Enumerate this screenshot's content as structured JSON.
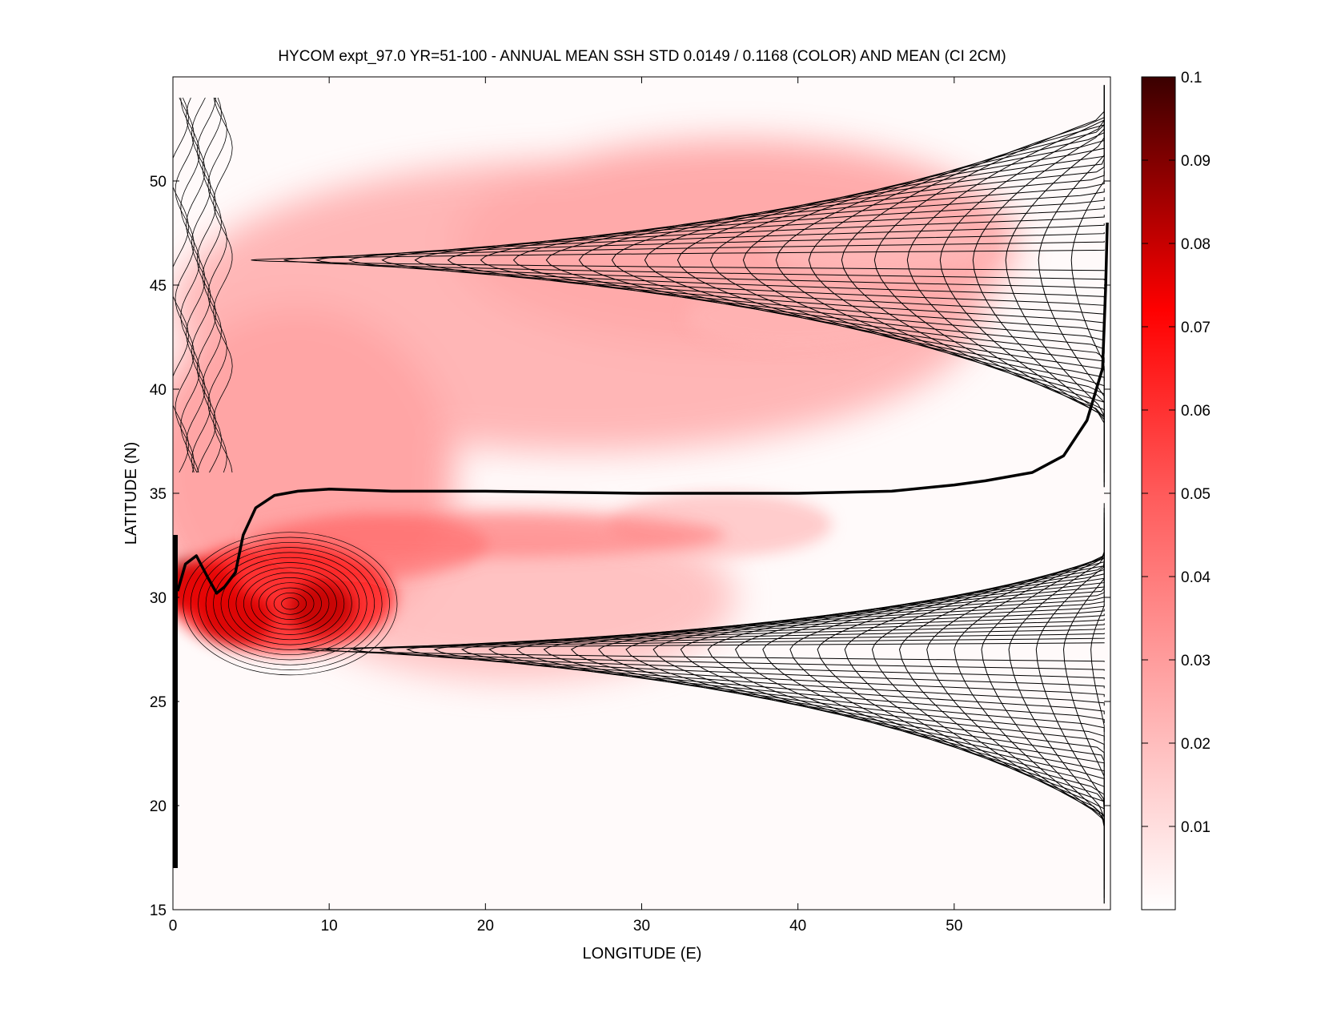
{
  "chart_data": {
    "type": "heatmap",
    "title": "HYCOM expt_97.0 YR=51-100 - ANNUAL MEAN SSH STD 0.0149 / 0.1168 (COLOR) AND MEAN (CI 2CM)",
    "xlabel": "LONGITUDE (E)",
    "ylabel": "LATITUDE (N)",
    "xlim": [
      0,
      60
    ],
    "ylim": [
      15,
      55
    ],
    "x_ticks": [
      0,
      10,
      20,
      30,
      40,
      50
    ],
    "y_ticks": [
      15,
      20,
      25,
      30,
      35,
      40,
      45,
      50
    ],
    "colorbar": {
      "min": 0,
      "max": 0.1,
      "ticks": [
        "0.1",
        "0.09",
        "0.08",
        "0.07",
        "0.06",
        "0.05",
        "0.04",
        "0.03",
        "0.02",
        "0.01"
      ],
      "tick_values": [
        0.1,
        0.09,
        0.08,
        0.07,
        0.06,
        0.05,
        0.04,
        0.03,
        0.02,
        0.01
      ],
      "colormap": [
        "#ffffff",
        "#ff0000",
        "#3a0000"
      ]
    },
    "ssh_std_maxima": [
      {
        "lon": 9.5,
        "lat": 29.5,
        "value": 0.1
      },
      {
        "lon": 4.0,
        "lat": 29.0,
        "value": 0.09
      },
      {
        "lon": 1.5,
        "lat": 30.5,
        "value": 0.085
      },
      {
        "lon": 13.0,
        "lat": 32.5,
        "value": 0.045
      },
      {
        "lon": 35.0,
        "lat": 33.5,
        "value": 0.025
      },
      {
        "lon": 40.0,
        "lat": 43.5,
        "value": 0.02
      },
      {
        "lon": 45.0,
        "lat": 47.0,
        "value": 0.018
      }
    ],
    "zero_contour": [
      [
        0.3,
        30.3
      ],
      [
        0.8,
        31.6
      ],
      [
        1.5,
        32.0
      ],
      [
        2.2,
        31.0
      ],
      [
        2.8,
        30.2
      ],
      [
        3.3,
        30.5
      ],
      [
        4.0,
        31.2
      ],
      [
        4.5,
        33.0
      ],
      [
        5.3,
        34.3
      ],
      [
        6.5,
        34.9
      ],
      [
        8.0,
        35.1
      ],
      [
        10.0,
        35.2
      ],
      [
        14.0,
        35.1
      ],
      [
        20.0,
        35.1
      ],
      [
        30.0,
        35.0
      ],
      [
        40.0,
        35.0
      ],
      [
        46.0,
        35.1
      ],
      [
        50.0,
        35.4
      ],
      [
        52.0,
        35.6
      ],
      [
        55.0,
        36.0
      ],
      [
        57.0,
        36.8
      ],
      [
        58.5,
        38.5
      ],
      [
        59.5,
        41.0
      ],
      [
        59.7,
        45.0
      ],
      [
        59.8,
        48.0
      ]
    ],
    "contour_interval_cm": 2,
    "grid": false
  }
}
